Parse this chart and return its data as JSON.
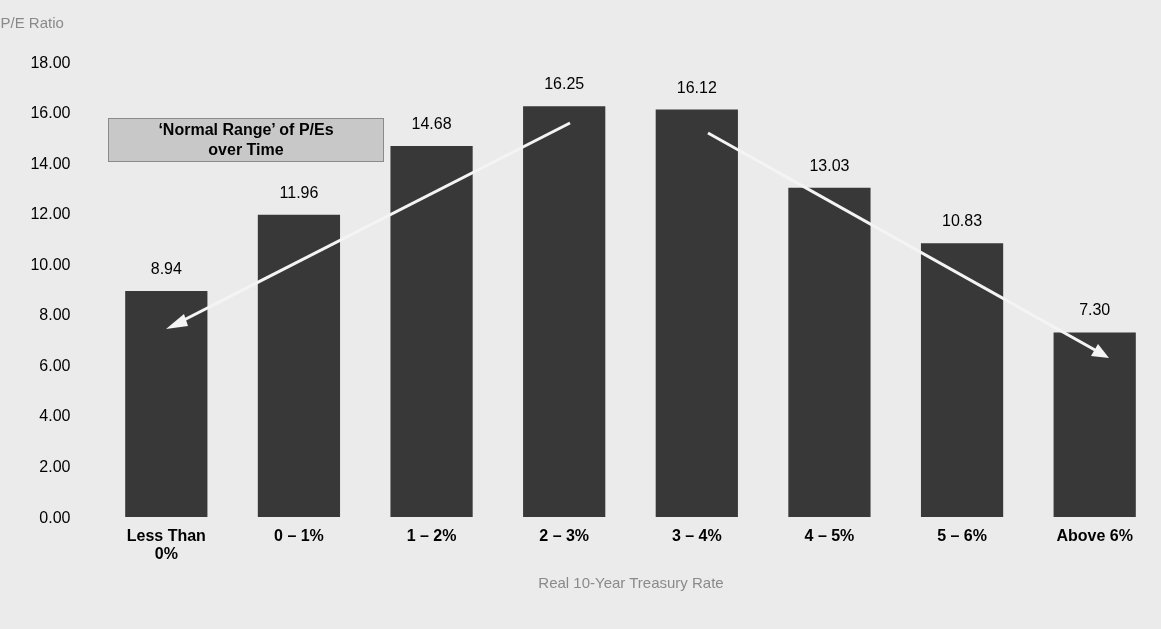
{
  "chart_data": {
    "type": "bar",
    "ylabel": "P/E Ratio",
    "xlabel": "Real 10-Year Treasury Rate",
    "categories": [
      "Less Than 0%",
      "0 – 1%",
      "1 – 2%",
      "2 – 3%",
      "3 – 4%",
      "4 – 5%",
      "5 – 6%",
      "Above 6%"
    ],
    "values": [
      8.94,
      11.96,
      14.68,
      16.25,
      16.12,
      13.03,
      10.83,
      7.3
    ],
    "value_labels": [
      "8.94",
      "11.96",
      "14.68",
      "16.25",
      "16.12",
      "13.03",
      "10.83",
      "7.30"
    ],
    "color": "#383838",
    "ylim": [
      0,
      18
    ],
    "yticks": [
      {
        "value": 0,
        "label": "0.00"
      },
      {
        "value": 2,
        "label": "2.00"
      },
      {
        "value": 4,
        "label": "4.00"
      },
      {
        "value": 6,
        "label": "6.00"
      },
      {
        "value": 8,
        "label": "8.00"
      },
      {
        "value": 10,
        "label": "10.00"
      },
      {
        "value": 12,
        "label": "12.00"
      },
      {
        "value": 14,
        "label": "14.00"
      },
      {
        "value": 16,
        "label": "16.00"
      },
      {
        "value": 18,
        "label": "18.00"
      }
    ],
    "annotations": [
      "‘Normal Range’ of P/Es over Time"
    ],
    "grid": false
  }
}
